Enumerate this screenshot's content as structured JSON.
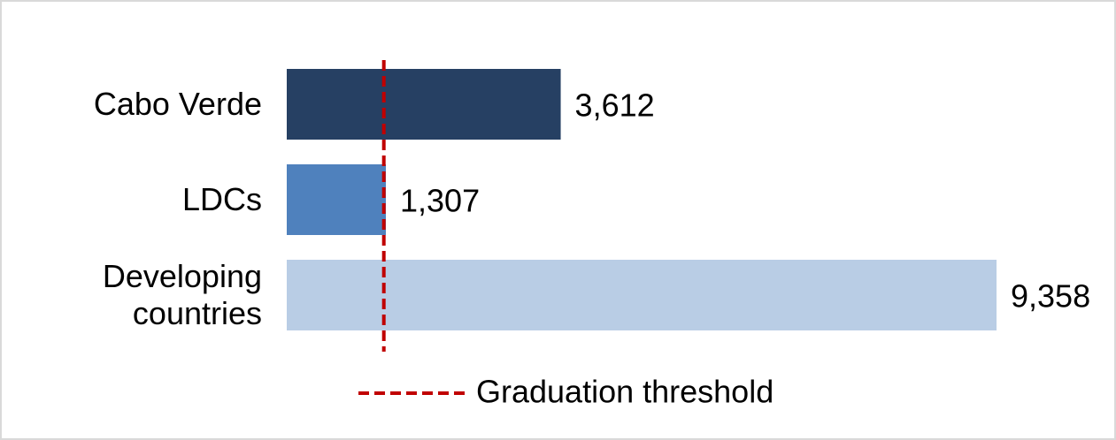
{
  "chart_data": {
    "type": "hbar",
    "categories": [
      "Cabo Verde",
      "LDCs",
      "Developing countries"
    ],
    "values": [
      3612,
      1307,
      9358
    ],
    "value_labels": [
      "3,612",
      "1,307",
      "9,358"
    ],
    "colors": [
      "#264063",
      "#4f81bd",
      "#b9cde5"
    ],
    "threshold": {
      "name": "Graduation threshold",
      "value": 1280,
      "color": "#c00000"
    }
  }
}
